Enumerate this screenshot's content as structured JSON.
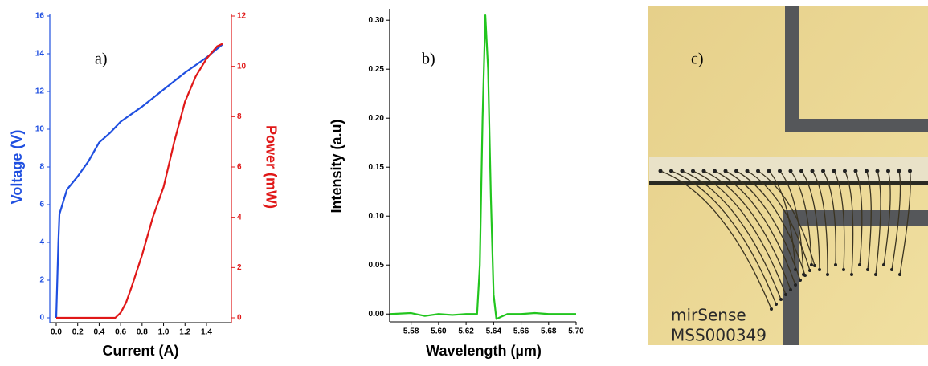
{
  "chart_data": [
    {
      "type": "line",
      "panel_label": "a)",
      "xlabel": "Current (A)",
      "ylabel": "Voltage (V)",
      "y2label": "Power (mW)",
      "xlim": [
        0,
        1.58
      ],
      "xticks": [
        {
          "value": 0,
          "label": "0.0"
        },
        0.2,
        0.4,
        0.6,
        0.8,
        {
          "value": 1,
          "label": "1.0"
        },
        1.2,
        1.4
      ],
      "ylim": [
        0,
        16
      ],
      "yticks": [
        0,
        2,
        4,
        6,
        8,
        10,
        12,
        14,
        16
      ],
      "y2lim": [
        0,
        12
      ],
      "y2ticks": [
        0,
        2,
        4,
        6,
        8,
        10,
        12
      ],
      "series": [
        {
          "color": "#1f4fe0",
          "x": [
            0,
            0.01,
            0.02,
            0.03,
            0.1,
            0.2,
            0.3,
            0.4,
            0.5,
            0.6,
            0.8,
            1.0,
            1.2,
            1.4,
            1.55
          ],
          "values": [
            0,
            2,
            4,
            5.5,
            6.8,
            7.5,
            8.3,
            9.3,
            9.8,
            10.4,
            11.2,
            12.1,
            13.0,
            13.8,
            14.5
          ]
        },
        {
          "color": "#e01818",
          "axis": "y2",
          "x": [
            0,
            0.55,
            0.6,
            0.65,
            0.7,
            0.8,
            0.9,
            1.0,
            1.1,
            1.2,
            1.3,
            1.4,
            1.5,
            1.55
          ],
          "values": [
            0,
            0,
            0.2,
            0.6,
            1.2,
            2.5,
            4.0,
            5.2,
            7.0,
            8.6,
            9.6,
            10.3,
            10.8,
            10.9
          ]
        }
      ]
    },
    {
      "type": "line",
      "panel_label": "b)",
      "xlabel": "Wavelength (µm)",
      "ylabel": "Intensity (a.u)",
      "xlim": [
        5.565,
        5.7
      ],
      "xticks": [
        5.58,
        {
          "value": 5.6,
          "label": "5.60"
        },
        5.62,
        5.64,
        5.66,
        5.68,
        {
          "value": 5.7,
          "label": "5.70"
        }
      ],
      "ylim": [
        -0.008,
        0.31
      ],
      "yticks": [
        {
          "value": 0,
          "label": "0.00"
        },
        0.05,
        {
          "value": 0.1,
          "label": "0.10"
        },
        0.15,
        {
          "value": 0.2,
          "label": "0.20"
        },
        0.25,
        {
          "value": 0.3,
          "label": "0.30"
        }
      ],
      "series": [
        {
          "color": "#22c51e",
          "x": [
            5.565,
            5.58,
            5.59,
            5.6,
            5.61,
            5.62,
            5.628,
            5.63,
            5.632,
            5.634,
            5.636,
            5.638,
            5.64,
            5.642,
            5.65,
            5.66,
            5.67,
            5.68,
            5.69,
            5.7
          ],
          "values": [
            0,
            0.001,
            -0.002,
            0,
            -0.001,
            0,
            0,
            0.05,
            0.2,
            0.305,
            0.25,
            0.12,
            0.02,
            -0.005,
            0,
            0,
            0.001,
            0,
            0,
            0
          ]
        }
      ]
    }
  ],
  "photo": {
    "panel_label": "c)",
    "text_lines": [
      "mirSense",
      "MSS000349"
    ]
  }
}
